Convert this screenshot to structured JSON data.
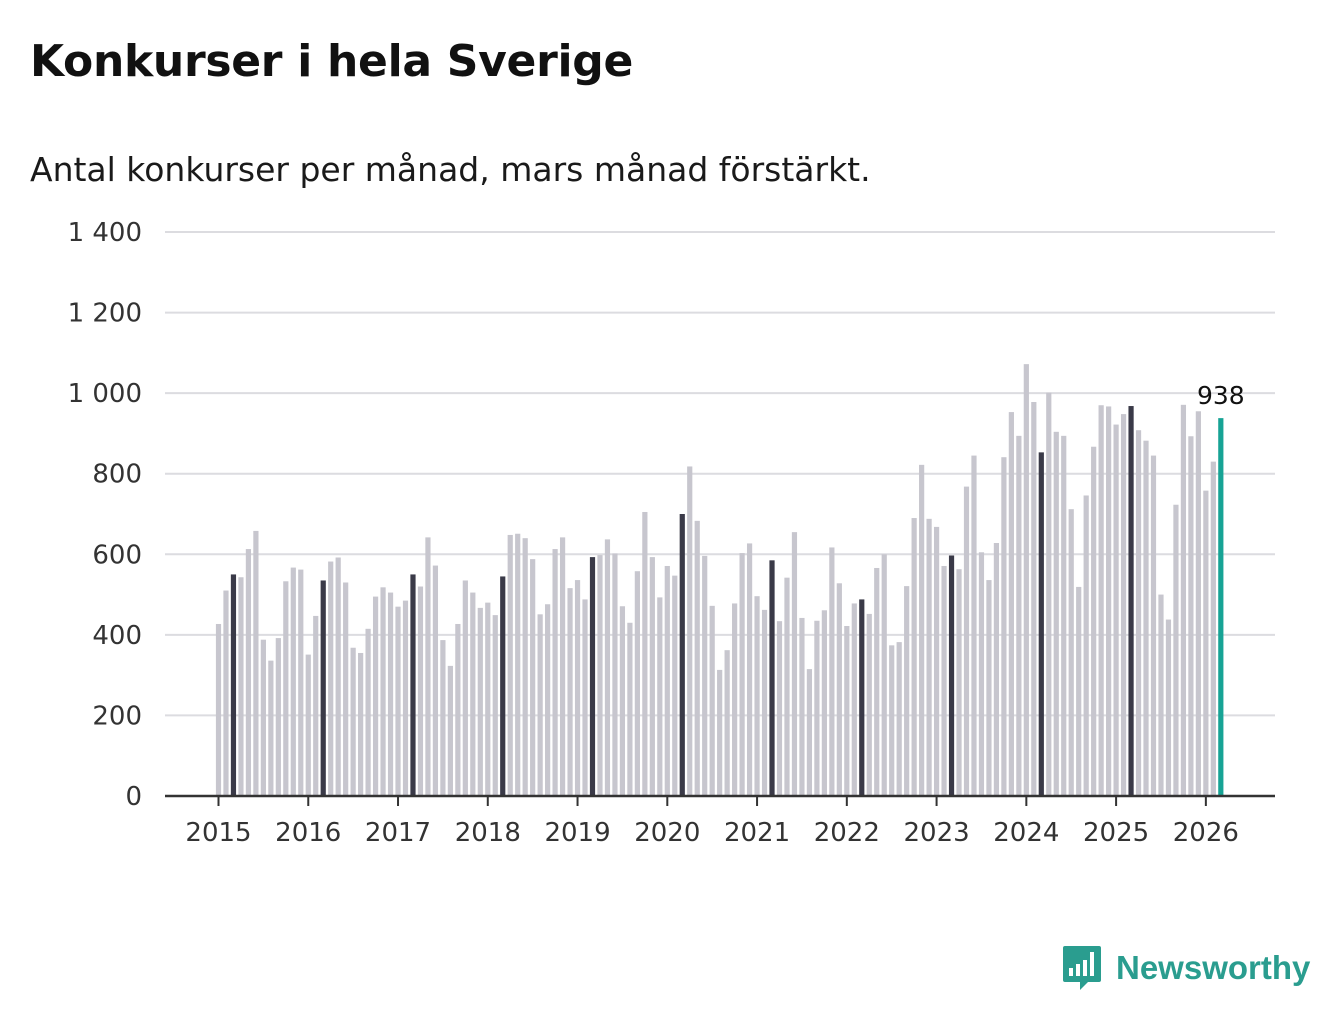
{
  "colors": {
    "bar": "#c7c6ce",
    "highlight": "#3a3a48",
    "latest": "#17a395",
    "grid": "#dcdce0",
    "axis": "#333333",
    "brand": "#2a9d8f"
  },
  "brand": {
    "name": "Newsworthy",
    "icon": "bar-chart-speech-bubble-icon"
  },
  "chart_data": {
    "type": "bar",
    "title": "Konkurser i hela Sverige",
    "subtitle": "Antal konkurser per månad, mars månad förstärkt.",
    "xlabel": "",
    "ylabel": "",
    "ylim": [
      0,
      1400
    ],
    "yticks": [
      0,
      200,
      400,
      600,
      800,
      1000,
      1200,
      1400
    ],
    "ytick_labels": [
      "0",
      "200",
      "400",
      "600",
      "800",
      "1 000",
      "1 200",
      "1 400"
    ],
    "xtick_labels": [
      "2015",
      "2016",
      "2017",
      "2018",
      "2019",
      "2020",
      "2021",
      "2022",
      "2023",
      "2024",
      "2025",
      "2026"
    ],
    "start": "2015-01",
    "highlight_month": "mars",
    "annotation": {
      "label": "938",
      "value": 938
    },
    "values": [
      427,
      510,
      550,
      543,
      613,
      658,
      388,
      336,
      392,
      533,
      567,
      562,
      351,
      447,
      535,
      582,
      592,
      530,
      368,
      355,
      415,
      495,
      518,
      505,
      470,
      485,
      550,
      520,
      642,
      572,
      387,
      323,
      427,
      535,
      505,
      467,
      480,
      449,
      545,
      648,
      651,
      640,
      588,
      451,
      476,
      613,
      642,
      516,
      536,
      488,
      593,
      598,
      637,
      602,
      471,
      430,
      558,
      705,
      593,
      493,
      571,
      547,
      700,
      818,
      683,
      596,
      472,
      313,
      362,
      478,
      603,
      627,
      496,
      462,
      585,
      434,
      542,
      655,
      442,
      315,
      435,
      461,
      617,
      528,
      422,
      478,
      488,
      452,
      566,
      600,
      374,
      382,
      521,
      690,
      822,
      688,
      668,
      571,
      597,
      563,
      768,
      845,
      605,
      536,
      628,
      841,
      953,
      894,
      1072,
      978,
      853,
      1001,
      904,
      894,
      712,
      519,
      746,
      867,
      970,
      967,
      922,
      948,
      968,
      908,
      882,
      845,
      500,
      438,
      723,
      971,
      893,
      955,
      758,
      830,
      938
    ]
  }
}
